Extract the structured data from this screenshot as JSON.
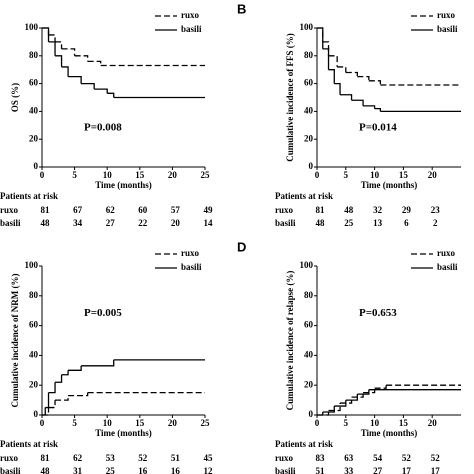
{
  "chart_data": [
    {
      "type": "line",
      "y_label": "OS (%)",
      "x_label": "Time (months)",
      "annotation": "P=0.008",
      "xlim": [
        0,
        25
      ],
      "xticks": [
        0,
        5,
        10,
        15,
        20,
        25
      ],
      "ylim": [
        0,
        100
      ],
      "yticks": [
        0,
        20,
        40,
        60,
        80,
        100
      ],
      "series": [
        {
          "name": "ruxo",
          "color": "#000000",
          "dashed": true,
          "x": [
            0,
            1,
            2,
            3,
            5,
            7,
            9,
            25
          ],
          "values": [
            100,
            95,
            90,
            85,
            80,
            76,
            73,
            73
          ]
        },
        {
          "name": "basili",
          "color": "#000000",
          "dashed": false,
          "x": [
            0,
            1,
            2,
            3,
            4,
            6,
            8,
            10,
            11,
            25
          ],
          "values": [
            100,
            90,
            80,
            72,
            65,
            60,
            56,
            53,
            50,
            50
          ]
        }
      ],
      "risk_table": {
        "title": "Patients at risk",
        "rows": [
          {
            "name": "ruxo",
            "counts": [
              81,
              67,
              62,
              60,
              57,
              49
            ]
          },
          {
            "name": "basili",
            "counts": [
              48,
              34,
              27,
              22,
              20,
              14
            ]
          }
        ]
      }
    },
    {
      "type": "line",
      "panel_label": "B",
      "y_label": "Cumulative incidence of FFS (%)",
      "x_label": "Time (months)",
      "annotation": "P=0.014",
      "xlim": [
        0,
        25
      ],
      "xticks": [
        0,
        5,
        10,
        15,
        20
      ],
      "ylim": [
        0,
        100
      ],
      "yticks": [
        0,
        20,
        40,
        60,
        80,
        100
      ],
      "series": [
        {
          "name": "ruxo",
          "color": "#000000",
          "dashed": true,
          "x": [
            0,
            1,
            2,
            3.5,
            5,
            7,
            9,
            11,
            25
          ],
          "values": [
            100,
            90,
            80,
            72,
            68,
            65,
            62,
            59,
            59
          ]
        },
        {
          "name": "basili",
          "color": "#000000",
          "dashed": false,
          "x": [
            0,
            1,
            2,
            3,
            4,
            6,
            8,
            10,
            11,
            25
          ],
          "values": [
            100,
            85,
            70,
            60,
            52,
            48,
            44,
            42,
            40,
            40
          ]
        }
      ],
      "risk_table": {
        "title": "Patients at risk",
        "rows": [
          {
            "name": "ruxo",
            "counts": [
              81,
              48,
              32,
              29,
              23
            ]
          },
          {
            "name": "basili",
            "counts": [
              48,
              25,
              13,
              6,
              2
            ]
          }
        ]
      }
    },
    {
      "type": "line",
      "y_label": "Cumulative incidence of NRM (%)",
      "x_label": "Time (months)",
      "annotation": "P=0.005",
      "xlim": [
        0,
        25
      ],
      "xticks": [
        0,
        5,
        10,
        15,
        20,
        25
      ],
      "ylim": [
        0,
        100
      ],
      "yticks": [
        0,
        20,
        40,
        60,
        80,
        100
      ],
      "series": [
        {
          "name": "ruxo",
          "color": "#000000",
          "dashed": true,
          "x": [
            0,
            1,
            2,
            4,
            7,
            25
          ],
          "values": [
            0,
            5,
            10,
            13,
            15,
            15
          ]
        },
        {
          "name": "basili",
          "color": "#000000",
          "dashed": false,
          "x": [
            0,
            0.5,
            1,
            2,
            3,
            4,
            6,
            11,
            25
          ],
          "values": [
            0,
            5,
            15,
            22,
            27,
            30,
            33,
            37,
            37
          ]
        }
      ],
      "risk_table": {
        "title": "Patients at risk",
        "rows": [
          {
            "name": "ruxo",
            "counts": [
              81,
              62,
              53,
              52,
              51,
              45
            ]
          },
          {
            "name": "basili",
            "counts": [
              48,
              31,
              25,
              16,
              16,
              12
            ]
          }
        ]
      }
    },
    {
      "type": "line",
      "panel_label": "D",
      "y_label": "Cumulative incidence of relapse (%)",
      "x_label": "Time (months)",
      "annotation": "P=0.653",
      "xlim": [
        0,
        25
      ],
      "xticks": [
        0,
        5,
        10,
        15,
        20
      ],
      "ylim": [
        0,
        100
      ],
      "yticks": [
        0,
        20,
        40,
        60,
        80,
        100
      ],
      "series": [
        {
          "name": "ruxo",
          "color": "#000000",
          "dashed": true,
          "x": [
            0,
            2,
            4,
            6,
            8,
            10,
            12,
            25
          ],
          "values": [
            0,
            3,
            8,
            12,
            15,
            18,
            20,
            20
          ]
        },
        {
          "name": "basili",
          "color": "#000000",
          "dashed": false,
          "x": [
            0,
            1,
            3,
            5,
            7,
            9,
            25
          ],
          "values": [
            0,
            2,
            6,
            10,
            14,
            17,
            17
          ]
        }
      ],
      "risk_table": {
        "title": "Patients at risk",
        "rows": [
          {
            "name": "ruxo",
            "counts": [
              83,
              63,
              54,
              52,
              52
            ]
          },
          {
            "name": "basili",
            "counts": [
              51,
              33,
              27,
              17,
              17
            ]
          }
        ]
      }
    }
  ]
}
